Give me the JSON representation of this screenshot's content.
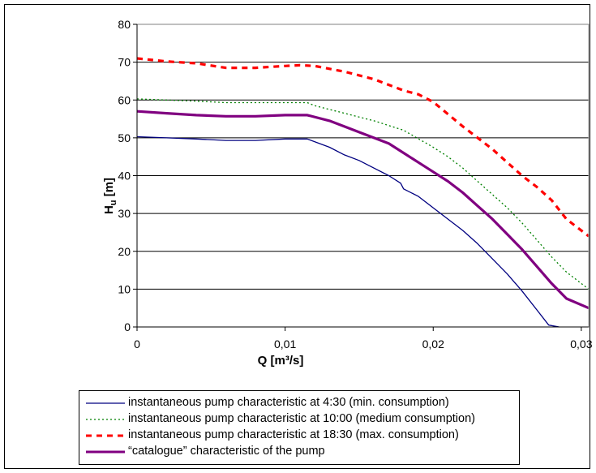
{
  "chart_data": {
    "type": "line",
    "xlabel": "Q [m³/s]",
    "ylabel": "H",
    "ylabel_sub": "u",
    "ylabel_unit": " [m]",
    "xlim": [
      0,
      0.0305
    ],
    "ylim": [
      0,
      80
    ],
    "x_ticks": [
      0,
      0.01,
      0.02,
      0.03
    ],
    "x_tick_labels": [
      "0",
      "0,01",
      "0,02",
      "0,03"
    ],
    "y_ticks": [
      0,
      10,
      20,
      30,
      40,
      50,
      60,
      70,
      80
    ],
    "y_tick_labels": [
      "0",
      "10",
      "20",
      "30",
      "40",
      "50",
      "60",
      "70",
      "80"
    ],
    "grid": "horizontal",
    "legend_position": "bottom",
    "series": [
      {
        "name": "instantaneous pump characteristic at 4:30 (min. consumption)",
        "color": "#000080",
        "style": "solid",
        "x": [
          0,
          0.002,
          0.004,
          0.006,
          0.008,
          0.01,
          0.0115,
          0.013,
          0.014,
          0.015,
          0.016,
          0.017,
          0.0178,
          0.018,
          0.019,
          0.02,
          0.021,
          0.022,
          0.023,
          0.024,
          0.025,
          0.026,
          0.027,
          0.0278,
          0.0285
        ],
        "y": [
          50.3,
          50,
          49.7,
          49.3,
          49.3,
          49.7,
          49.7,
          47.5,
          45.5,
          44,
          42,
          40,
          38,
          36.5,
          34.5,
          31.5,
          28.5,
          25.5,
          22,
          18,
          14,
          9.5,
          4.5,
          0.5,
          0
        ]
      },
      {
        "name": "instantaneous pump characteristic at 10:00 (medium consumption)",
        "color": "#008000",
        "style": "dotted",
        "x": [
          0,
          0.002,
          0.004,
          0.006,
          0.008,
          0.01,
          0.0115,
          0.012,
          0.014,
          0.016,
          0.018,
          0.02,
          0.021,
          0.022,
          0.023,
          0.024,
          0.025,
          0.026,
          0.027,
          0.028,
          0.029,
          0.0305
        ],
        "y": [
          60.3,
          60,
          59.7,
          59.3,
          59.3,
          59.3,
          59.3,
          58.5,
          56.5,
          54.5,
          52,
          47.5,
          45,
          42,
          38.5,
          35,
          31.5,
          27.5,
          23,
          18.5,
          14.5,
          10
        ]
      },
      {
        "name": "instantaneous pump characteristic at 18:30 (max. consumption)",
        "color": "#ff0000",
        "style": "dashed",
        "x": [
          0,
          0.002,
          0.004,
          0.006,
          0.008,
          0.01,
          0.011,
          0.012,
          0.014,
          0.016,
          0.018,
          0.019,
          0.02,
          0.022,
          0.024,
          0.026,
          0.027,
          0.028,
          0.029,
          0.0305
        ],
        "y": [
          71,
          70.2,
          69.7,
          68.5,
          68.5,
          69,
          69.2,
          69,
          67.5,
          65.5,
          62.5,
          61.5,
          59.5,
          53,
          47,
          40,
          37,
          33.5,
          28.5,
          24
        ]
      },
      {
        "name": "“catalogue” characteristic of the pump",
        "color": "#800080",
        "style": "solid-thick",
        "x": [
          0,
          0.002,
          0.004,
          0.006,
          0.008,
          0.01,
          0.0115,
          0.013,
          0.014,
          0.015,
          0.016,
          0.017,
          0.018,
          0.019,
          0.02,
          0.021,
          0.022,
          0.023,
          0.024,
          0.025,
          0.026,
          0.027,
          0.028,
          0.029,
          0.0305
        ],
        "y": [
          57,
          56.5,
          56,
          55.7,
          55.7,
          56,
          56,
          54.5,
          53,
          51.5,
          50,
          48.5,
          46,
          43.5,
          41,
          38.5,
          35.5,
          32,
          28.5,
          24.5,
          20.5,
          16,
          11.5,
          7.5,
          5
        ]
      }
    ]
  }
}
